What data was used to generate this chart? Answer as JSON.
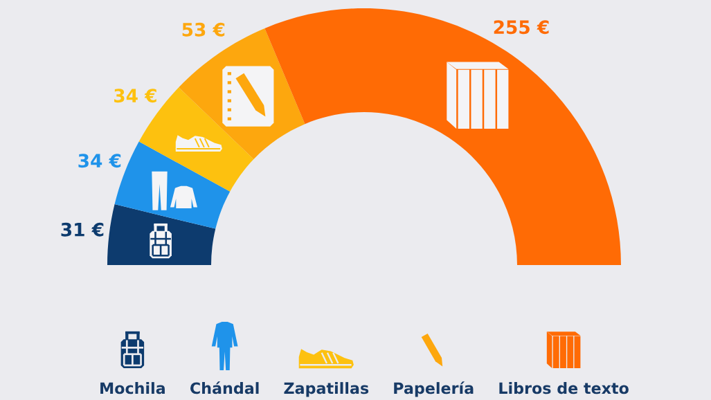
{
  "chart_data": {
    "type": "donut",
    "categories": [
      "Mochila",
      "Chándal",
      "Zapatillas",
      "Papelería",
      "Libros de texto"
    ],
    "values": [
      31,
      34,
      34,
      53,
      255
    ],
    "colors": [
      "#0d3b6e",
      "#1f93ea",
      "#fdc10f",
      "#fda70e",
      "#ff6b05"
    ],
    "value_labels": [
      "31 €",
      "34 €",
      "34 €",
      "53 €",
      "255 €"
    ],
    "legend": "bottom"
  }
}
